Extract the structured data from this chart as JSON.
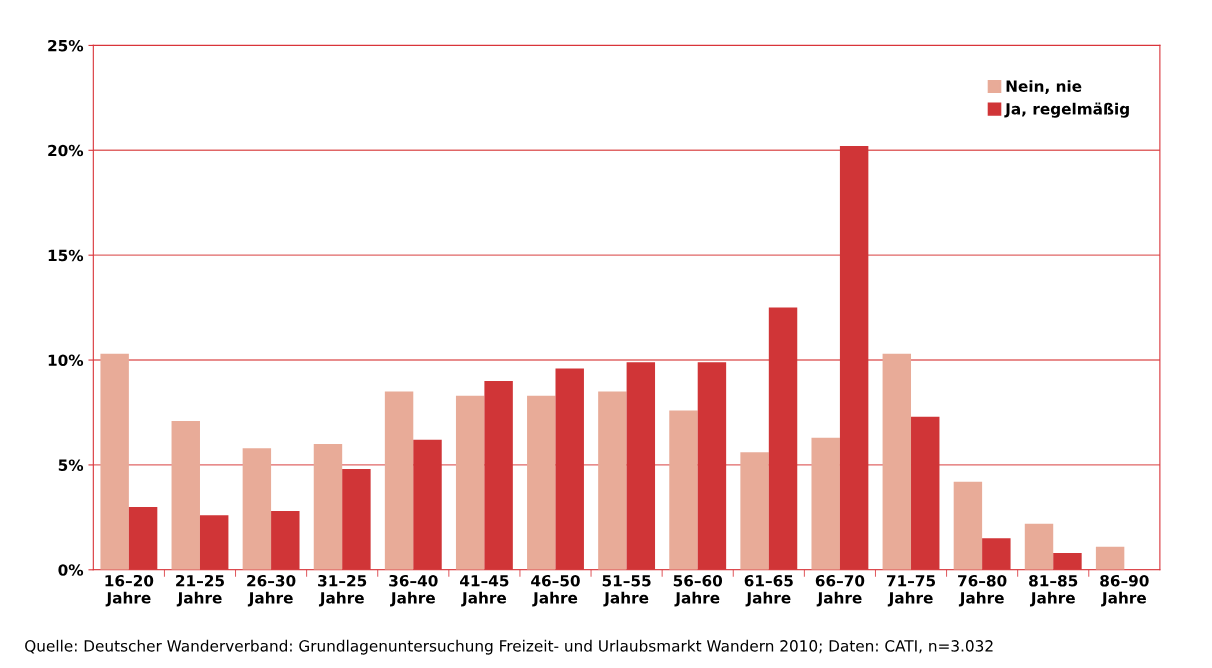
{
  "chart_data": {
    "type": "bar",
    "categories": [
      "16–20\nJahre",
      "21–25\nJahre",
      "26–30\nJahre",
      "31–25\nJahre",
      "36–40\nJahre",
      "41–45\nJahre",
      "46–50\nJahre",
      "51–55\nJahre",
      "56–60\nJahre",
      "61–65\nJahre",
      "66–70\nJahre",
      "71–75\nJahre",
      "76–80\nJahre",
      "81–85\nJahre",
      "86–90\nJahre"
    ],
    "series": [
      {
        "name": "Nein, nie",
        "color": "#e8ab98",
        "values": [
          10.3,
          7.1,
          5.8,
          6.0,
          8.5,
          8.3,
          8.3,
          8.5,
          7.6,
          5.6,
          6.3,
          10.3,
          4.2,
          2.2,
          1.1
        ]
      },
      {
        "name": "Ja, regelmäßig",
        "color": "#d03537",
        "values": [
          3.0,
          2.6,
          2.8,
          4.8,
          6.2,
          9.0,
          9.6,
          9.9,
          9.9,
          12.5,
          20.2,
          7.3,
          1.5,
          0.8,
          0
        ]
      }
    ],
    "ylim": [
      0,
      25
    ],
    "yticks": [
      {
        "value": 0,
        "label": "0%"
      },
      {
        "value": 5,
        "label": "5%"
      },
      {
        "value": 10,
        "label": "10%"
      },
      {
        "value": 15,
        "label": "15%"
      },
      {
        "value": 20,
        "label": "20%"
      },
      {
        "value": 25,
        "label": "25%"
      }
    ],
    "grid": "y",
    "legend": "top right",
    "annotations": [
      "Quelle: Deutscher Wanderverband: Grundlagenuntersuchung Freizeit- und Urlaubsmarkt Wandern 2010; Daten: CATI, n=3.032"
    ]
  }
}
